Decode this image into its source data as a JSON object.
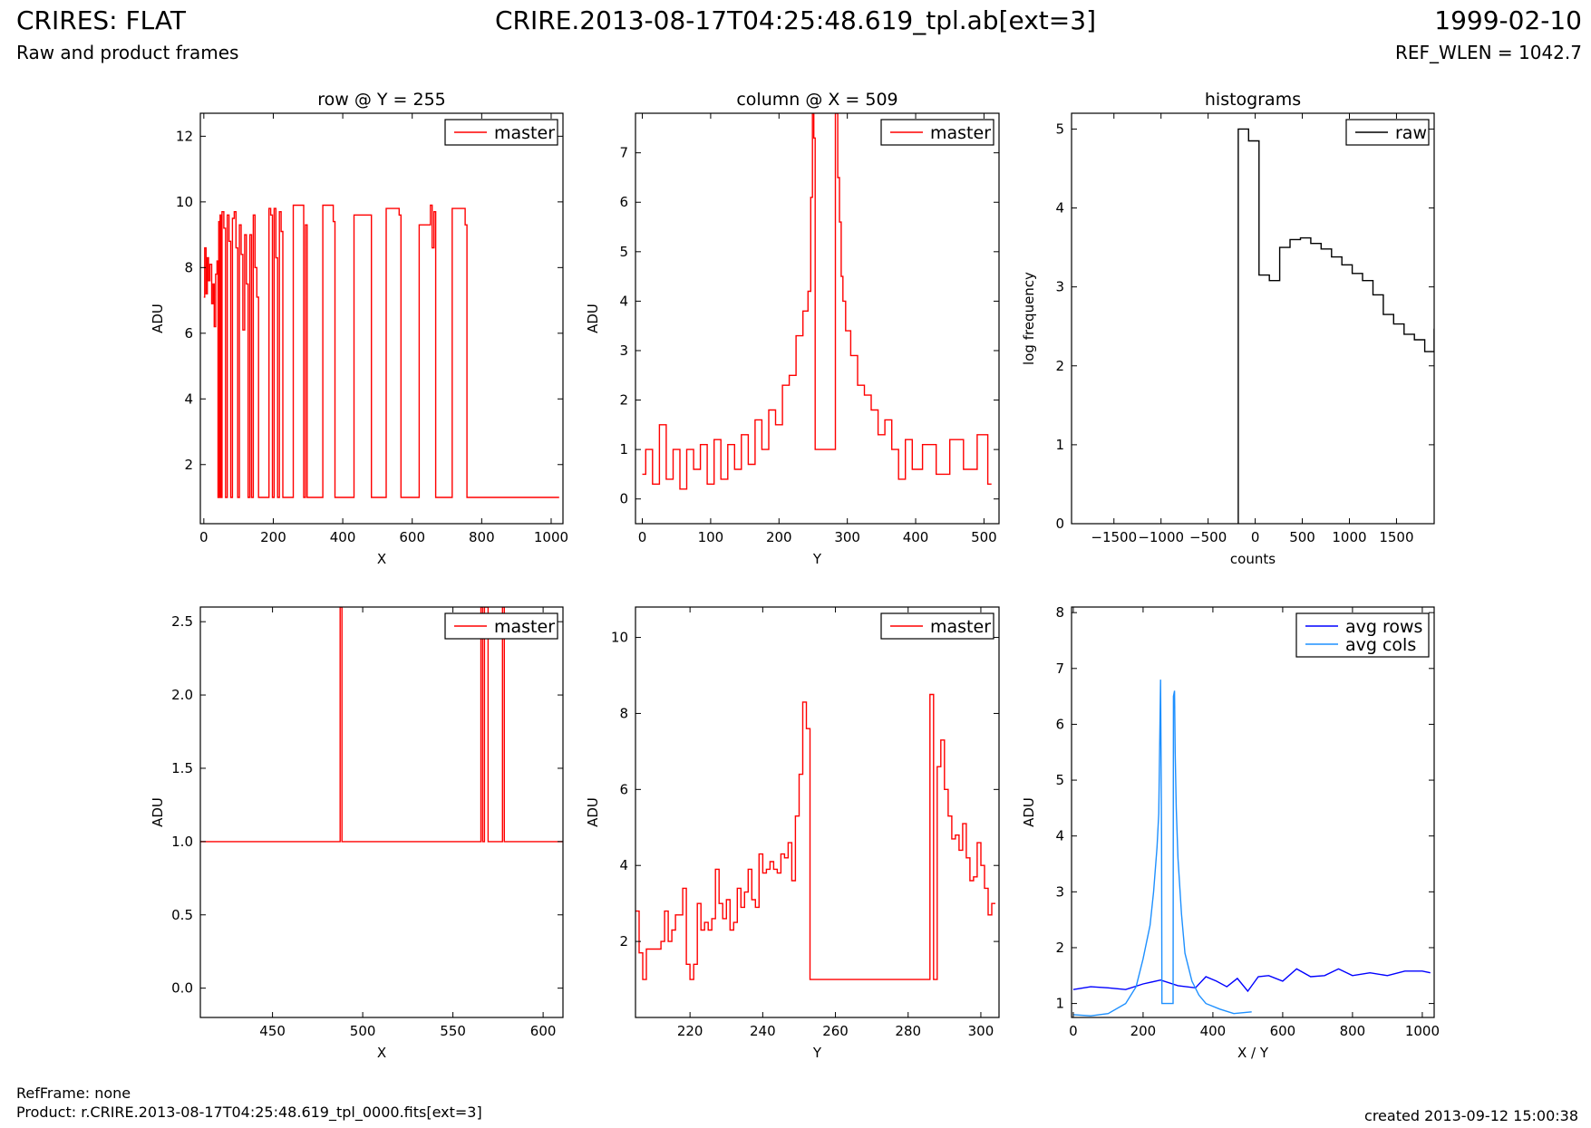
{
  "header": {
    "title": "CRIRES: FLAT",
    "subtitle": "Raw and product frames",
    "filename": "CRIRE.2013-08-17T04:25:48.619_tpl.ab[ext=3]",
    "date": "1999-02-10",
    "ref_wlen": "REF_WLEN = 1042.7"
  },
  "footer": {
    "refframe": "RefFrame: none",
    "product": "Product: r.CRIRE.2013-08-17T04:25:48.619_tpl_0000.fits[ext=3]",
    "created": "created 2013-09-12 15:00:38"
  },
  "colors": {
    "master": "#ff0000",
    "raw": "#000000",
    "avg_rows": "#0000ff",
    "avg_cols": "#1e90ff"
  },
  "chart_data": [
    {
      "id": "row_full",
      "type": "line",
      "title": "row @ Y = 255",
      "xlabel": "X",
      "ylabel": "ADU",
      "xlim": [
        -10,
        1034
      ],
      "ylim": [
        0.2,
        12.7
      ],
      "xticks": [
        0,
        200,
        400,
        600,
        800,
        1000
      ],
      "yticks": [
        2,
        4,
        6,
        8,
        10,
        12
      ],
      "legend": "top-right",
      "draw": "step",
      "series": [
        {
          "name": "master",
          "color": "#ff0000",
          "x": [
            0,
            5,
            8,
            12,
            15,
            20,
            25,
            28,
            32,
            36,
            40,
            42,
            44,
            46,
            48,
            50,
            55,
            60,
            65,
            70,
            75,
            80,
            85,
            90,
            95,
            100,
            105,
            110,
            115,
            120,
            125,
            130,
            135,
            140,
            145,
            150,
            155,
            160,
            165,
            170,
            175,
            180,
            185,
            190,
            195,
            200,
            205,
            210,
            215,
            220,
            225,
            230,
            285,
            290,
            295,
            300,
            305,
            310,
            315,
            370,
            375,
            380,
            385,
            480,
            485,
            490,
            560,
            565,
            570,
            575,
            580,
            590,
            650,
            655,
            660,
            665,
            670,
            675,
            680,
            750,
            755,
            760,
            765,
            770,
            1023
          ],
          "y": [
            7.1,
            8.6,
            7.2,
            8.3,
            7.6,
            8.1,
            6.9,
            7.5,
            6.2,
            7.8,
            8.2,
            1,
            9.4,
            1,
            9.6,
            1,
            9.7,
            9.2,
            1,
            9.6,
            8.8,
            1,
            9.5,
            9.7,
            8.6,
            1,
            9.3,
            8.4,
            6.1,
            9.0,
            7.5,
            1,
            9.0,
            1,
            9.6,
            8.0,
            7.1,
            1,
            1,
            1,
            1,
            1,
            1,
            9.8,
            9.6,
            1,
            9.8,
            8.3,
            1,
            9.7,
            9.1,
            1,
            9.9,
            1,
            9.3,
            1,
            1,
            1,
            1,
            9.9,
            9.4,
            1,
            1,
            9.6,
            1,
            1,
            9.8,
            9.6,
            1,
            1,
            1,
            1,
            9.3,
            9.9,
            8.6,
            9.7,
            1,
            1,
            1,
            9.8,
            9.3,
            1,
            1,
            1,
            1
          ]
        }
      ]
    },
    {
      "id": "col_full",
      "type": "line",
      "title": "column @ X = 509",
      "xlabel": "Y",
      "ylabel": "ADU",
      "xlim": [
        -10,
        522
      ],
      "ylim": [
        -0.5,
        7.8
      ],
      "xticks": [
        0,
        100,
        200,
        300,
        400,
        500
      ],
      "yticks": [
        0,
        1,
        2,
        3,
        4,
        5,
        6,
        7
      ],
      "legend": "top-right",
      "draw": "step",
      "series": [
        {
          "name": "master",
          "color": "#ff0000",
          "x": [
            0,
            10,
            20,
            30,
            40,
            50,
            60,
            70,
            80,
            90,
            100,
            110,
            120,
            130,
            140,
            150,
            160,
            170,
            180,
            190,
            200,
            210,
            220,
            230,
            240,
            245,
            248,
            250,
            252,
            254,
            260,
            270,
            280,
            285,
            287,
            290,
            292,
            295,
            300,
            310,
            320,
            330,
            340,
            350,
            360,
            370,
            380,
            390,
            400,
            420,
            440,
            460,
            480,
            500,
            511
          ],
          "y": [
            0.5,
            1.0,
            0.3,
            1.5,
            0.4,
            1.0,
            0.2,
            1.0,
            0.6,
            1.1,
            0.3,
            1.2,
            0.4,
            1.1,
            0.6,
            1.3,
            0.7,
            1.6,
            1.0,
            1.8,
            1.5,
            2.3,
            2.5,
            3.3,
            3.8,
            4.2,
            6.1,
            7.8,
            7.3,
            1.0,
            1.0,
            1.0,
            1.0,
            7.8,
            6.5,
            5.6,
            4.5,
            4.0,
            3.4,
            2.9,
            2.3,
            2.1,
            1.8,
            1.3,
            1.6,
            1.0,
            0.4,
            1.2,
            0.6,
            1.1,
            0.5,
            1.2,
            0.6,
            1.3,
            0.3
          ]
        }
      ]
    },
    {
      "id": "hist",
      "type": "line",
      "title": "histograms",
      "xlabel": "counts",
      "ylabel": "log frequency",
      "xlim": [
        -1950,
        1900
      ],
      "ylim": [
        0,
        5.2
      ],
      "xticks": [
        -1500,
        -1000,
        -500,
        0,
        500,
        1000,
        1500
      ],
      "yticks": [
        0,
        1,
        2,
        3,
        4,
        5
      ],
      "legend": "top-right",
      "draw": "steps-post",
      "series": [
        {
          "name": "raw",
          "color": "#000000",
          "x": [
            -180,
            -180,
            -70,
            40,
            150,
            260,
            370,
            480,
            590,
            700,
            810,
            920,
            1030,
            1140,
            1250,
            1360,
            1470,
            1580,
            1690,
            1800,
            1900
          ],
          "y": [
            0,
            5.0,
            4.85,
            3.15,
            3.08,
            3.5,
            3.6,
            3.62,
            3.55,
            3.48,
            3.38,
            3.28,
            3.17,
            3.08,
            2.9,
            2.65,
            2.53,
            2.4,
            2.33,
            2.18,
            2.47
          ]
        }
      ]
    },
    {
      "id": "row_zoom",
      "type": "line",
      "title": "",
      "xlabel": "X",
      "ylabel": "ADU",
      "xlim": [
        410,
        611
      ],
      "ylim": [
        -0.2,
        2.6
      ],
      "xticks": [
        450,
        500,
        550,
        600
      ],
      "yticks": [
        0.0,
        0.5,
        1.0,
        1.5,
        2.0,
        2.5
      ],
      "legend": "top-right",
      "draw": "step",
      "series": [
        {
          "name": "master",
          "color": "#ff0000",
          "x": [
            410,
            487,
            488,
            489,
            565,
            566,
            567,
            568,
            569,
            570,
            577,
            578,
            579,
            611
          ],
          "y": [
            1.0,
            1.0,
            2.6,
            1.0,
            1.0,
            2.6,
            1.0,
            2.6,
            2.6,
            1.0,
            1.0,
            2.6,
            1.0,
            1.0
          ]
        }
      ]
    },
    {
      "id": "col_zoom",
      "type": "line",
      "title": "",
      "xlabel": "Y",
      "ylabel": "ADU",
      "xlim": [
        205,
        305
      ],
      "ylim": [
        0,
        10.8
      ],
      "xticks": [
        220,
        240,
        260,
        280,
        300
      ],
      "yticks": [
        2,
        4,
        6,
        8,
        10
      ],
      "legend": "top-right",
      "draw": "steps-post",
      "series": [
        {
          "name": "master",
          "color": "#ff0000",
          "x": [
            205,
            206,
            207,
            208,
            209,
            212,
            213,
            214,
            215,
            216,
            217,
            218,
            219,
            220,
            221,
            222,
            223,
            224,
            225,
            226,
            227,
            228,
            229,
            230,
            231,
            232,
            233,
            234,
            235,
            236,
            237,
            238,
            239,
            240,
            241,
            242,
            243,
            244,
            245,
            246,
            247,
            248,
            249,
            250,
            251,
            252,
            253,
            254,
            286,
            287,
            288,
            289,
            290,
            291,
            292,
            293,
            294,
            295,
            296,
            297,
            298,
            299,
            300,
            301,
            302,
            303,
            304
          ],
          "y": [
            2.8,
            1.7,
            1.0,
            1.8,
            1.8,
            2.0,
            2.8,
            2.0,
            2.3,
            2.7,
            2.7,
            3.4,
            1.4,
            1.0,
            1.4,
            3.0,
            2.3,
            2.5,
            2.3,
            2.6,
            3.9,
            3.0,
            2.6,
            3.1,
            2.3,
            2.5,
            3.4,
            2.9,
            3.3,
            3.9,
            3.1,
            2.9,
            4.3,
            3.8,
            3.9,
            4.1,
            3.9,
            3.8,
            4.3,
            4.2,
            4.6,
            3.6,
            5.3,
            6.4,
            8.3,
            7.6,
            1.0,
            1.0,
            8.5,
            1.0,
            6.6,
            7.3,
            6.0,
            5.3,
            4.7,
            4.8,
            4.4,
            5.1,
            4.2,
            3.6,
            3.7,
            4.6,
            4.0,
            3.4,
            2.7,
            3.0,
            3.0
          ]
        }
      ]
    },
    {
      "id": "avg",
      "type": "line",
      "title": "",
      "xlabel": "X / Y",
      "ylabel": "ADU",
      "xlim": [
        -5,
        1034
      ],
      "ylim": [
        0.75,
        8.1
      ],
      "xticks": [
        0,
        200,
        400,
        600,
        800,
        1000
      ],
      "yticks": [
        1,
        2,
        3,
        4,
        5,
        6,
        7,
        8
      ],
      "legend": "top-right",
      "draw": "line",
      "series": [
        {
          "name": "avg rows",
          "color": "#0000ff",
          "x": [
            0,
            50,
            100,
            150,
            200,
            250,
            300,
            350,
            380,
            410,
            440,
            470,
            500,
            530,
            560,
            600,
            640,
            680,
            720,
            760,
            800,
            850,
            900,
            950,
            1000,
            1023
          ],
          "y": [
            1.25,
            1.3,
            1.28,
            1.25,
            1.35,
            1.42,
            1.32,
            1.28,
            1.48,
            1.4,
            1.3,
            1.45,
            1.22,
            1.48,
            1.5,
            1.4,
            1.62,
            1.48,
            1.5,
            1.62,
            1.5,
            1.55,
            1.5,
            1.58,
            1.58,
            1.55
          ]
        },
        {
          "name": "avg cols",
          "color": "#1e90ff",
          "x": [
            0,
            50,
            100,
            150,
            180,
            200,
            220,
            230,
            240,
            245,
            250,
            253,
            254,
            286,
            287,
            290,
            292,
            295,
            300,
            310,
            320,
            340,
            360,
            380,
            420,
            460,
            511
          ],
          "y": [
            0.8,
            0.78,
            0.82,
            1.0,
            1.3,
            1.8,
            2.4,
            3.0,
            3.8,
            4.4,
            6.8,
            4.0,
            1.0,
            1.0,
            6.5,
            6.6,
            5.5,
            4.5,
            3.6,
            2.6,
            1.9,
            1.4,
            1.15,
            1.0,
            0.9,
            0.82,
            0.85
          ]
        }
      ]
    }
  ]
}
